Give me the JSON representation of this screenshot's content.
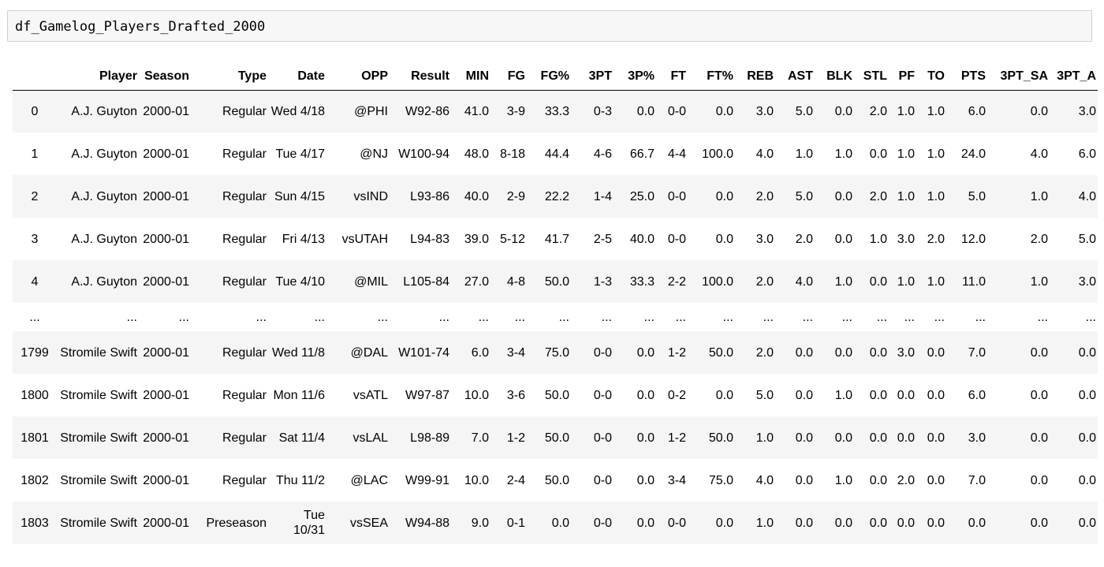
{
  "code_cell": {
    "text": "df_Gamelog_Players_Drafted_2000"
  },
  "table": {
    "columns": [
      "",
      "Player",
      "Season",
      "Type",
      "Date",
      "OPP",
      "Result",
      "MIN",
      "FG",
      "FG%",
      "3PT",
      "3P%",
      "FT",
      "FT%",
      "REB",
      "AST",
      "BLK",
      "STL",
      "PF",
      "TO",
      "PTS",
      "3PT_SA",
      "3PT_A"
    ],
    "rows": [
      [
        "0",
        "A.J. Guyton",
        "2000-01",
        "Regular",
        "Wed 4/18",
        "@PHI",
        "W92-86",
        "41.0",
        "3-9",
        "33.3",
        "0-3",
        "0.0",
        "0-0",
        "0.0",
        "3.0",
        "5.0",
        "0.0",
        "2.0",
        "1.0",
        "1.0",
        "6.0",
        "0.0",
        "3.0"
      ],
      [
        "1",
        "A.J. Guyton",
        "2000-01",
        "Regular",
        "Tue 4/17",
        "@NJ",
        "W100-94",
        "48.0",
        "8-18",
        "44.4",
        "4-6",
        "66.7",
        "4-4",
        "100.0",
        "4.0",
        "1.0",
        "1.0",
        "0.0",
        "1.0",
        "1.0",
        "24.0",
        "4.0",
        "6.0"
      ],
      [
        "2",
        "A.J. Guyton",
        "2000-01",
        "Regular",
        "Sun 4/15",
        "vsIND",
        "L93-86",
        "40.0",
        "2-9",
        "22.2",
        "1-4",
        "25.0",
        "0-0",
        "0.0",
        "2.0",
        "5.0",
        "0.0",
        "2.0",
        "1.0",
        "1.0",
        "5.0",
        "1.0",
        "4.0"
      ],
      [
        "3",
        "A.J. Guyton",
        "2000-01",
        "Regular",
        "Fri 4/13",
        "vsUTAH",
        "L94-83",
        "39.0",
        "5-12",
        "41.7",
        "2-5",
        "40.0",
        "0-0",
        "0.0",
        "3.0",
        "2.0",
        "0.0",
        "1.0",
        "3.0",
        "2.0",
        "12.0",
        "2.0",
        "5.0"
      ],
      [
        "4",
        "A.J. Guyton",
        "2000-01",
        "Regular",
        "Tue 4/10",
        "@MIL",
        "L105-84",
        "27.0",
        "4-8",
        "50.0",
        "1-3",
        "33.3",
        "2-2",
        "100.0",
        "2.0",
        "4.0",
        "1.0",
        "0.0",
        "1.0",
        "1.0",
        "11.0",
        "1.0",
        "3.0"
      ],
      [
        "...",
        "...",
        "...",
        "...",
        "...",
        "...",
        "...",
        "...",
        "...",
        "...",
        "...",
        "...",
        "...",
        "...",
        "...",
        "...",
        "...",
        "...",
        "...",
        "...",
        "...",
        "...",
        "..."
      ],
      [
        "1799",
        "Stromile Swift",
        "2000-01",
        "Regular",
        "Wed 11/8",
        "@DAL",
        "W101-74",
        "6.0",
        "3-4",
        "75.0",
        "0-0",
        "0.0",
        "1-2",
        "50.0",
        "2.0",
        "0.0",
        "0.0",
        "0.0",
        "3.0",
        "0.0",
        "7.0",
        "0.0",
        "0.0"
      ],
      [
        "1800",
        "Stromile Swift",
        "2000-01",
        "Regular",
        "Mon 11/6",
        "vsATL",
        "W97-87",
        "10.0",
        "3-6",
        "50.0",
        "0-0",
        "0.0",
        "0-2",
        "0.0",
        "5.0",
        "0.0",
        "1.0",
        "0.0",
        "0.0",
        "0.0",
        "6.0",
        "0.0",
        "0.0"
      ],
      [
        "1801",
        "Stromile Swift",
        "2000-01",
        "Regular",
        "Sat 11/4",
        "vsLAL",
        "L98-89",
        "7.0",
        "1-2",
        "50.0",
        "0-0",
        "0.0",
        "1-2",
        "50.0",
        "1.0",
        "0.0",
        "0.0",
        "0.0",
        "0.0",
        "0.0",
        "3.0",
        "0.0",
        "0.0"
      ],
      [
        "1802",
        "Stromile Swift",
        "2000-01",
        "Regular",
        "Thu 11/2",
        "@LAC",
        "W99-91",
        "10.0",
        "2-4",
        "50.0",
        "0-0",
        "0.0",
        "3-4",
        "75.0",
        "4.0",
        "0.0",
        "1.0",
        "0.0",
        "2.0",
        "0.0",
        "7.0",
        "0.0",
        "0.0"
      ],
      [
        "1803",
        "Stromile Swift",
        "2000-01",
        "Preseason",
        "Tue 10/31",
        "vsSEA",
        "W94-88",
        "9.0",
        "0-1",
        "0.0",
        "0-0",
        "0.0",
        "0-0",
        "0.0",
        "1.0",
        "0.0",
        "0.0",
        "0.0",
        "0.0",
        "0.0",
        "0.0",
        "0.0",
        "0.0"
      ]
    ]
  }
}
